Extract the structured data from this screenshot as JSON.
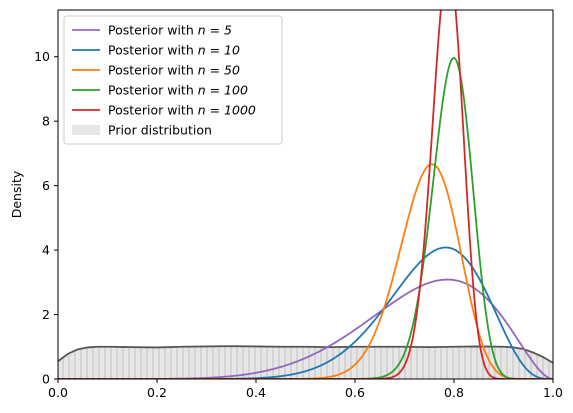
{
  "chart_data": {
    "type": "line",
    "title": "",
    "xlabel": "",
    "ylabel": "Density",
    "xlim": [
      0,
      1
    ],
    "ylim": [
      0,
      11.45
    ],
    "x_ticks": [
      "0.0",
      "0.2",
      "0.4",
      "0.6",
      "0.8",
      "1.0"
    ],
    "y_ticks": [
      "0",
      "2",
      "4",
      "6",
      "8",
      "10"
    ],
    "grid": false,
    "legend_position": "top-left",
    "prior": {
      "label": "Prior distribution",
      "fill_color": "#d9d9d9",
      "hatch_color": "#b0b0b0",
      "line_color": "#555555",
      "x": [
        0.0,
        0.02,
        0.04,
        0.06,
        0.08,
        0.1,
        0.15,
        0.2,
        0.25,
        0.3,
        0.35,
        0.4,
        0.45,
        0.5,
        0.55,
        0.6,
        0.65,
        0.7,
        0.75,
        0.8,
        0.85,
        0.9,
        0.92,
        0.94,
        0.96,
        0.98,
        1.0
      ],
      "y": [
        0.55,
        0.78,
        0.92,
        0.98,
        1.0,
        1.0,
        0.99,
        0.98,
        1.0,
        1.01,
        1.02,
        1.01,
        1.0,
        1.0,
        0.99,
        1.0,
        1.0,
        1.0,
        0.99,
        1.0,
        1.01,
        1.0,
        0.98,
        0.93,
        0.82,
        0.68,
        0.5
      ]
    },
    "series": [
      {
        "name": "Posterior with n = 5",
        "label_prefix": "Posterior with ",
        "label_math": "n = 5",
        "color": "#9467bd",
        "alpha": 8.0,
        "beta": 2.9
      },
      {
        "name": "Posterior with n = 10",
        "label_prefix": "Posterior with ",
        "label_math": "n = 10",
        "color": "#1f77b4",
        "alpha": 14.0,
        "beta": 4.6
      },
      {
        "name": "Posterior with n = 50",
        "label_prefix": "Posterior with ",
        "label_math": "n = 50",
        "color": "#ff7f0e",
        "alpha": 39.0,
        "beta": 13.3
      },
      {
        "name": "Posterior with n = 100",
        "label_prefix": "Posterior with ",
        "label_math": "n = 100",
        "color": "#2ca02c",
        "alpha": 80.0,
        "beta": 20.8
      },
      {
        "name": "Posterior with n = 1000",
        "label_prefix": "Posterior with ",
        "label_math": "n = 1000",
        "color": "#d62728",
        "alpha": 136.0,
        "beta": 37.2
      }
    ]
  }
}
